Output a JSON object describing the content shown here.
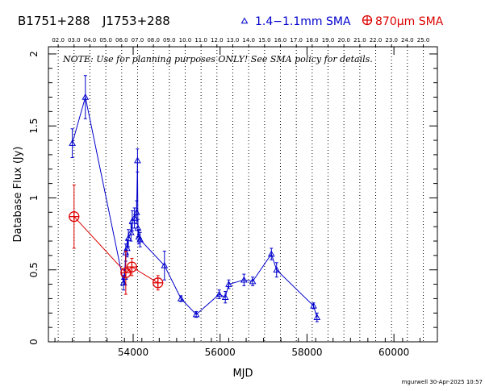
{
  "header": {
    "source_1": "B1751+288",
    "source_2": "J1753+288",
    "legend_blue_label": "1.4−1.1mm SMA",
    "legend_red_label": "870μm SMA",
    "legend_blue_marker": "triangle-marker",
    "legend_red_marker": "circled-plus-marker"
  },
  "note": "NOTE: Use for planning purposes ONLY!  See SMA policy for details.",
  "footer": {
    "stamp": "mgurwell 30-Apr-2025 10:57"
  },
  "colors": {
    "blue": "#0000cc",
    "red": "#dd0000",
    "axis": "#000000"
  },
  "chart_data": {
    "type": "scatter",
    "title": "",
    "xlabel": "MJD",
    "ylabel": "Database Flux (Jy)",
    "xlim": [
      52050,
      61000
    ],
    "ylim": [
      0,
      2.05
    ],
    "x_ticks": [
      54000,
      56000,
      58000,
      60000
    ],
    "x_tick_labels": [
      "54000",
      "56000",
      "58000",
      "60000"
    ],
    "y_ticks": [
      0,
      0.5,
      1,
      1.5,
      2
    ],
    "y_tick_labels": [
      "0",
      "0.5",
      "1",
      "1.5",
      "2"
    ],
    "top_axis_ticks": [
      {
        "label": "02.0",
        "x": 52275
      },
      {
        "label": "03.0",
        "x": 52640
      },
      {
        "label": "04.0",
        "x": 53005
      },
      {
        "label": "05.0",
        "x": 53371
      },
      {
        "label": "06.0",
        "x": 53736
      },
      {
        "label": "07.0",
        "x": 54101
      },
      {
        "label": "08.0",
        "x": 54466
      },
      {
        "label": "09.0",
        "x": 54832
      },
      {
        "label": "10.0",
        "x": 55197
      },
      {
        "label": "11.0",
        "x": 55562
      },
      {
        "label": "12.0",
        "x": 55927
      },
      {
        "label": "13.0",
        "x": 56293
      },
      {
        "label": "14.0",
        "x": 56658
      },
      {
        "label": "15.0",
        "x": 57023
      },
      {
        "label": "16.0",
        "x": 57388
      },
      {
        "label": "17.0",
        "x": 57754
      },
      {
        "label": "18.0",
        "x": 58119
      },
      {
        "label": "19.0",
        "x": 58484
      },
      {
        "label": "20.0",
        "x": 58849
      },
      {
        "label": "21.0",
        "x": 59215
      },
      {
        "label": "22.0",
        "x": 59580
      },
      {
        "label": "23.0",
        "x": 59945
      },
      {
        "label": "24.0",
        "x": 60310
      },
      {
        "label": "25.0",
        "x": 60676
      }
    ],
    "grid": "vertical dotted lines at top-axis ticks",
    "legend_position": "top",
    "series": [
      {
        "name": "1.4−1.1mm SMA",
        "color": "#0000cc",
        "marker": "triangle",
        "points": [
          {
            "x": 52600,
            "y": 1.38,
            "err": 0.1
          },
          {
            "x": 52900,
            "y": 1.7,
            "err": 0.15
          },
          {
            "x": 53780,
            "y": 0.41,
            "err": 0.05
          },
          {
            "x": 53800,
            "y": 0.45,
            "err": 0.05
          },
          {
            "x": 53830,
            "y": 0.62,
            "err": 0.06
          },
          {
            "x": 53860,
            "y": 0.65,
            "err": 0.06
          },
          {
            "x": 53890,
            "y": 0.72,
            "err": 0.06
          },
          {
            "x": 53950,
            "y": 0.76,
            "err": 0.06
          },
          {
            "x": 53980,
            "y": 0.84,
            "err": 0.07
          },
          {
            "x": 54030,
            "y": 0.86,
            "err": 0.07
          },
          {
            "x": 54080,
            "y": 0.9,
            "err": 0.08
          },
          {
            "x": 54110,
            "y": 0.79,
            "err": 0.06
          },
          {
            "x": 54100,
            "y": 1.26,
            "err": 0.08
          },
          {
            "x": 54130,
            "y": 0.73,
            "err": 0.05
          },
          {
            "x": 54160,
            "y": 0.71,
            "err": 0.05
          },
          {
            "x": 54720,
            "y": 0.53,
            "err": 0.1
          },
          {
            "x": 55100,
            "y": 0.3,
            "err": 0.02
          },
          {
            "x": 55450,
            "y": 0.19,
            "err": 0.02
          },
          {
            "x": 55980,
            "y": 0.33,
            "err": 0.03
          },
          {
            "x": 56120,
            "y": 0.31,
            "err": 0.04
          },
          {
            "x": 56200,
            "y": 0.4,
            "err": 0.03
          },
          {
            "x": 56550,
            "y": 0.43,
            "err": 0.04
          },
          {
            "x": 56750,
            "y": 0.42,
            "err": 0.03
          },
          {
            "x": 57180,
            "y": 0.61,
            "err": 0.04
          },
          {
            "x": 57300,
            "y": 0.5,
            "err": 0.05
          },
          {
            "x": 58150,
            "y": 0.25,
            "err": 0.02
          },
          {
            "x": 58230,
            "y": 0.17,
            "err": 0.03
          }
        ]
      },
      {
        "name": "870μm SMA",
        "color": "#dd0000",
        "marker": "circled-plus",
        "points": [
          {
            "x": 52640,
            "y": 0.87,
            "err": 0.22
          },
          {
            "x": 53830,
            "y": 0.48,
            "err": 0.15
          },
          {
            "x": 53970,
            "y": 0.52,
            "err": 0.06
          },
          {
            "x": 54570,
            "y": 0.41,
            "err": 0.05
          }
        ]
      }
    ]
  }
}
